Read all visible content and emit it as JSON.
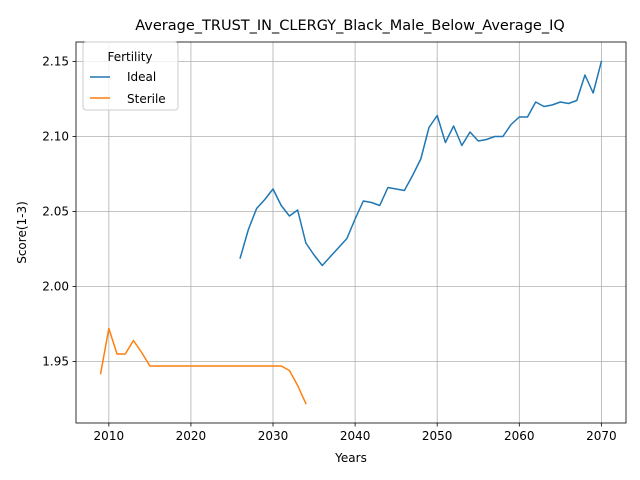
{
  "chart_data": {
    "type": "line",
    "title": "Average_TRUST_IN_CLERGY_Black_Male_Below_Average_IQ",
    "xlabel": "Years",
    "ylabel": "Score(1-3)",
    "xlim": [
      2006,
      2073
    ],
    "ylim": [
      1.909,
      2.163
    ],
    "x_ticks": [
      2010,
      2020,
      2030,
      2040,
      2050,
      2060,
      2070
    ],
    "y_ticks": [
      1.95,
      2.0,
      2.05,
      2.1,
      2.15
    ],
    "x_tick_labels": [
      "2010",
      "2020",
      "2030",
      "2040",
      "2050",
      "2060",
      "2070"
    ],
    "y_tick_labels": [
      "1.95",
      "2.00",
      "2.05",
      "2.10",
      "2.15"
    ],
    "grid": true,
    "legend": {
      "title": "Fertility",
      "location": "upper-left"
    },
    "series": [
      {
        "name": "Ideal",
        "color": "#1f77b4",
        "x": [
          2026,
          2027,
          2028,
          2029,
          2030,
          2031,
          2032,
          2033,
          2034,
          2035,
          2036,
          2037,
          2038,
          2039,
          2040,
          2041,
          2042,
          2043,
          2044,
          2045,
          2046,
          2047,
          2048,
          2049,
          2050,
          2051,
          2052,
          2053,
          2054,
          2055,
          2056,
          2057,
          2058,
          2059,
          2060,
          2061,
          2062,
          2063,
          2064,
          2065,
          2066,
          2067,
          2068,
          2069,
          2070
        ],
        "y": [
          2.019,
          2.038,
          2.052,
          2.058,
          2.065,
          2.054,
          2.047,
          2.051,
          2.029,
          2.021,
          2.014,
          2.02,
          2.026,
          2.032,
          2.045,
          2.057,
          2.056,
          2.054,
          2.066,
          2.065,
          2.064,
          2.074,
          2.085,
          2.106,
          2.114,
          2.096,
          2.107,
          2.094,
          2.103,
          2.097,
          2.098,
          2.1,
          2.1,
          2.108,
          2.113,
          2.113,
          2.123,
          2.12,
          2.121,
          2.123,
          2.122,
          2.124,
          2.141,
          2.129,
          2.15
        ]
      },
      {
        "name": "Sterile",
        "color": "#ff7f0e",
        "x": [
          2009,
          2010,
          2011,
          2012,
          2013,
          2014,
          2015,
          2016,
          2017,
          2018,
          2019,
          2020,
          2021,
          2022,
          2023,
          2024,
          2025,
          2026,
          2027,
          2028,
          2029,
          2030,
          2031,
          2032,
          2033,
          2034
        ],
        "y": [
          1.942,
          1.972,
          1.955,
          1.955,
          1.964,
          1.956,
          1.947,
          1.947,
          1.947,
          1.947,
          1.947,
          1.947,
          1.947,
          1.947,
          1.947,
          1.947,
          1.947,
          1.947,
          1.947,
          1.947,
          1.947,
          1.947,
          1.947,
          1.944,
          1.934,
          1.922
        ]
      }
    ]
  }
}
